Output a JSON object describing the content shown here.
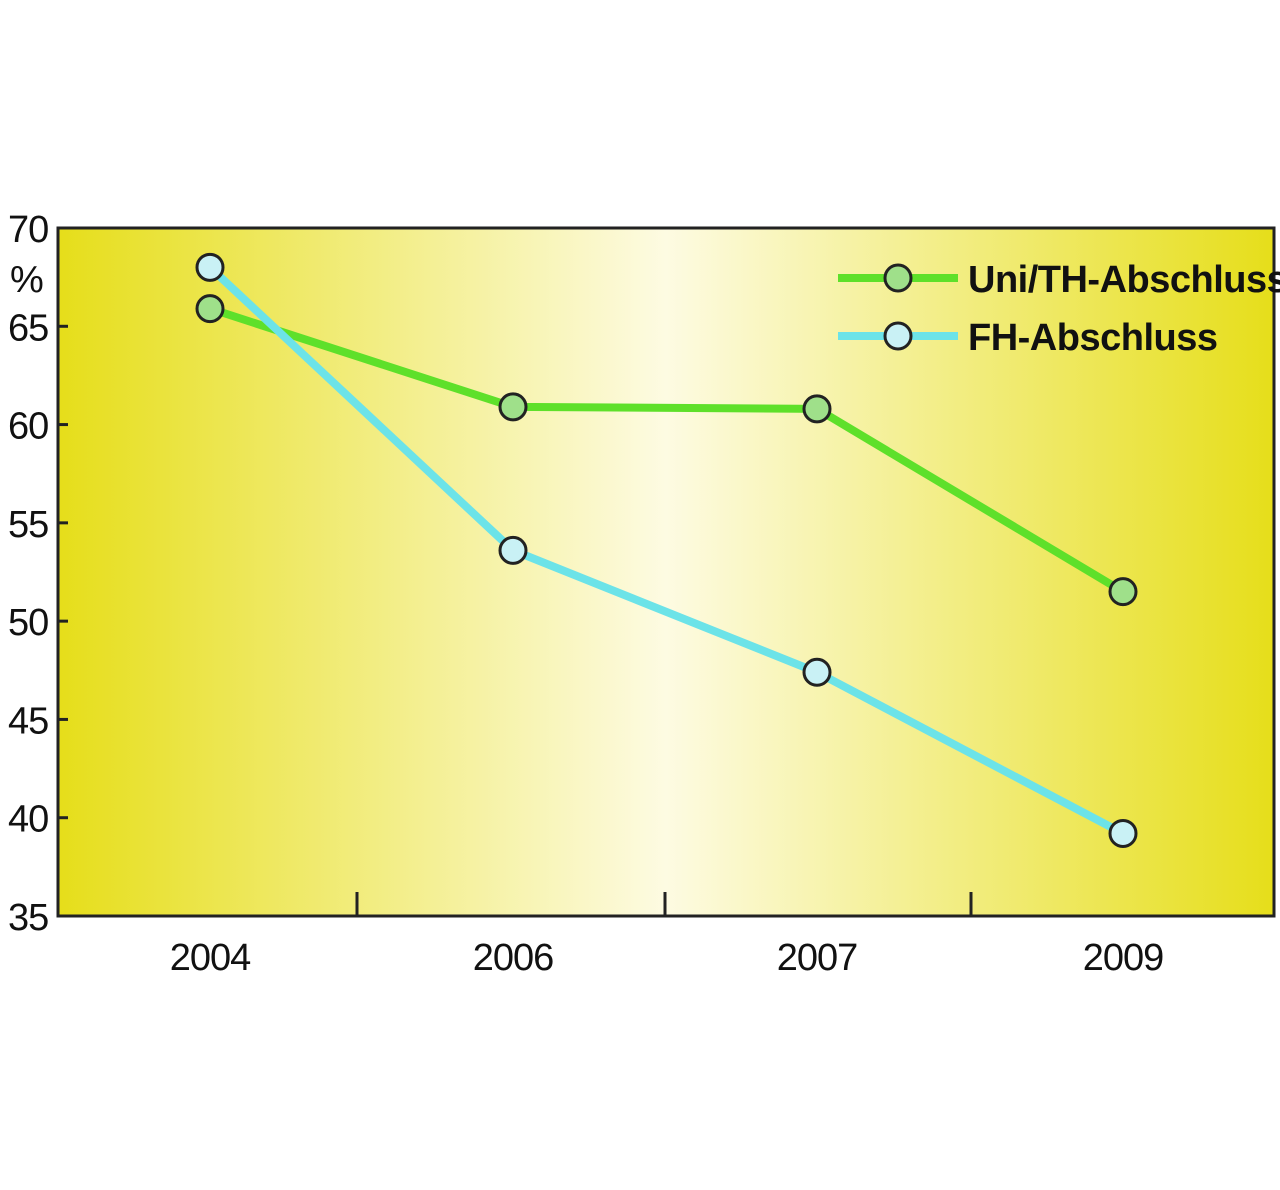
{
  "chart_data": {
    "type": "line",
    "categories": [
      "2004",
      "2006",
      "2007",
      "2009"
    ],
    "series": [
      {
        "name": "Uni/TH-Abschluss",
        "values": [
          65.9,
          60.9,
          60.8,
          51.5
        ],
        "color": "#5ee02a"
      },
      {
        "name": "FH-Abschluss",
        "values": [
          68.0,
          53.6,
          47.4,
          39.2
        ],
        "color": "#6ce3e8"
      }
    ],
    "ylim": [
      35,
      70
    ],
    "yticks": [
      "35",
      "40",
      "45",
      "50",
      "55",
      "60",
      "65",
      "70"
    ],
    "unit": "%",
    "legend_position": "top-right",
    "grid": false,
    "marker_colors": {
      "Uni/TH-Abschluss": "#9fe08a",
      "FH-Abschluss": "#c9f1f5"
    },
    "background_colors": {
      "edge": "#e6de1a",
      "center": "#fdfbe2"
    }
  }
}
